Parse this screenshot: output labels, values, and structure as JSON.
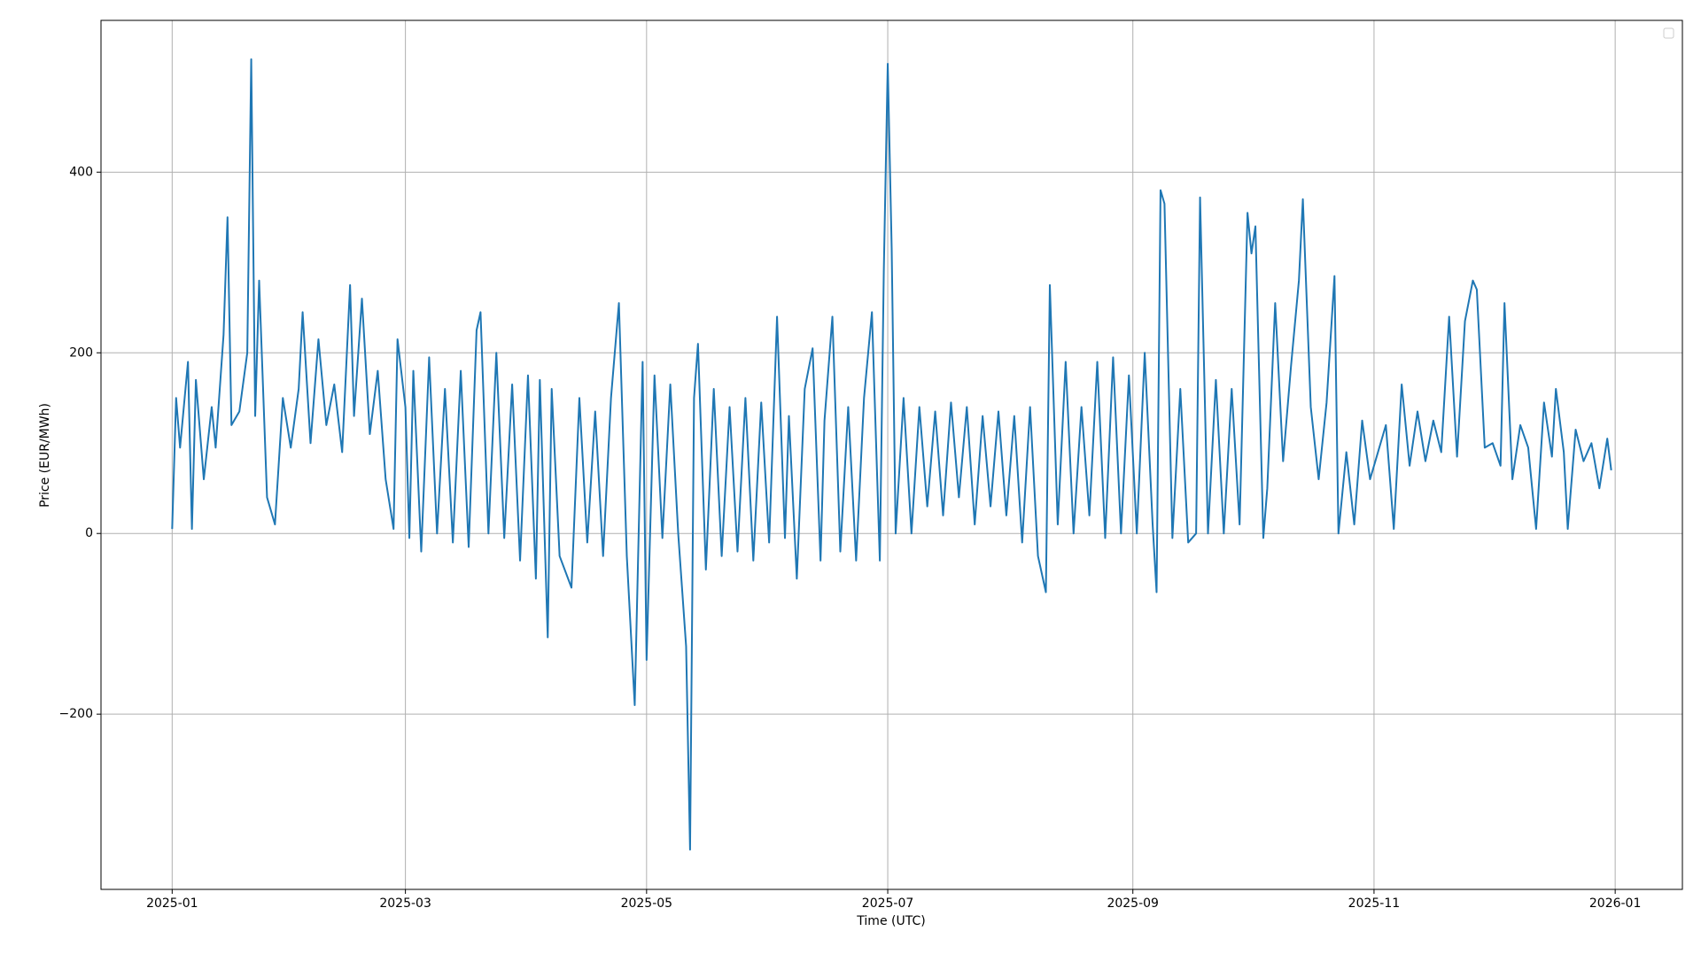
{
  "chart_data": {
    "type": "line",
    "xlabel": "Time (UTC)",
    "ylabel": "Price (EUR/MWh)",
    "x": [
      "2025-01-01",
      "2025-01-02",
      "2025-01-03",
      "2025-01-05",
      "2025-01-06",
      "2025-01-07",
      "2025-01-09",
      "2025-01-11",
      "2025-01-12",
      "2025-01-14",
      "2025-01-15",
      "2025-01-16",
      "2025-01-18",
      "2025-01-20",
      "2025-01-21",
      "2025-01-22",
      "2025-01-23",
      "2025-01-25",
      "2025-01-27",
      "2025-01-29",
      "2025-01-31",
      "2025-02-02",
      "2025-02-03",
      "2025-02-05",
      "2025-02-07",
      "2025-02-09",
      "2025-02-11",
      "2025-02-13",
      "2025-02-15",
      "2025-02-16",
      "2025-02-18",
      "2025-02-20",
      "2025-02-22",
      "2025-02-24",
      "2025-02-26",
      "2025-02-27",
      "2025-03-01",
      "2025-03-02",
      "2025-03-03",
      "2025-03-05",
      "2025-03-07",
      "2025-03-09",
      "2025-03-11",
      "2025-03-13",
      "2025-03-15",
      "2025-03-17",
      "2025-03-19",
      "2025-03-20",
      "2025-03-22",
      "2025-03-24",
      "2025-03-26",
      "2025-03-28",
      "2025-03-30",
      "2025-04-01",
      "2025-04-03",
      "2025-04-04",
      "2025-04-06",
      "2025-04-07",
      "2025-04-09",
      "2025-04-12",
      "2025-04-14",
      "2025-04-16",
      "2025-04-18",
      "2025-04-20",
      "2025-04-22",
      "2025-04-24",
      "2025-04-26",
      "2025-04-28",
      "2025-04-30",
      "2025-05-01",
      "2025-05-03",
      "2025-05-05",
      "2025-05-07",
      "2025-05-09",
      "2025-05-11",
      "2025-05-12",
      "2025-05-13",
      "2025-05-14",
      "2025-05-16",
      "2025-05-18",
      "2025-05-20",
      "2025-05-22",
      "2025-05-24",
      "2025-05-26",
      "2025-05-28",
      "2025-05-30",
      "2025-06-01",
      "2025-06-03",
      "2025-06-05",
      "2025-06-06",
      "2025-06-08",
      "2025-06-10",
      "2025-06-12",
      "2025-06-14",
      "2025-06-15",
      "2025-06-17",
      "2025-06-19",
      "2025-06-21",
      "2025-06-23",
      "2025-06-25",
      "2025-06-27",
      "2025-06-29",
      "2025-06-30",
      "2025-07-01",
      "2025-07-02",
      "2025-07-03",
      "2025-07-05",
      "2025-07-07",
      "2025-07-09",
      "2025-07-11",
      "2025-07-13",
      "2025-07-15",
      "2025-07-17",
      "2025-07-19",
      "2025-07-21",
      "2025-07-23",
      "2025-07-25",
      "2025-07-27",
      "2025-07-29",
      "2025-07-31",
      "2025-08-02",
      "2025-08-04",
      "2025-08-06",
      "2025-08-08",
      "2025-08-10",
      "2025-08-11",
      "2025-08-13",
      "2025-08-15",
      "2025-08-17",
      "2025-08-19",
      "2025-08-21",
      "2025-08-23",
      "2025-08-25",
      "2025-08-27",
      "2025-08-29",
      "2025-08-31",
      "2025-09-02",
      "2025-09-04",
      "2025-09-06",
      "2025-09-07",
      "2025-09-08",
      "2025-09-09",
      "2025-09-11",
      "2025-09-13",
      "2025-09-15",
      "2025-09-17",
      "2025-09-18",
      "2025-09-20",
      "2025-09-22",
      "2025-09-24",
      "2025-09-26",
      "2025-09-28",
      "2025-09-30",
      "2025-10-01",
      "2025-10-02",
      "2025-10-04",
      "2025-10-05",
      "2025-10-07",
      "2025-10-09",
      "2025-10-11",
      "2025-10-13",
      "2025-10-14",
      "2025-10-16",
      "2025-10-18",
      "2025-10-20",
      "2025-10-22",
      "2025-10-23",
      "2025-10-25",
      "2025-10-27",
      "2025-10-29",
      "2025-10-31",
      "2025-11-02",
      "2025-11-04",
      "2025-11-06",
      "2025-11-08",
      "2025-11-10",
      "2025-11-12",
      "2025-11-14",
      "2025-11-16",
      "2025-11-18",
      "2025-11-20",
      "2025-11-22",
      "2025-11-24",
      "2025-11-26",
      "2025-11-27",
      "2025-11-29",
      "2025-12-01",
      "2025-12-03",
      "2025-12-04",
      "2025-12-06",
      "2025-12-08",
      "2025-12-10",
      "2025-12-12",
      "2025-12-14",
      "2025-12-16",
      "2025-12-17",
      "2025-12-19",
      "2025-12-20",
      "2025-12-22",
      "2025-12-24",
      "2025-12-26",
      "2025-12-28",
      "2025-12-30",
      "2025-12-31"
    ],
    "values": [
      5,
      150,
      95,
      190,
      5,
      170,
      60,
      140,
      95,
      220,
      350,
      120,
      135,
      200,
      525,
      130,
      280,
      40,
      10,
      150,
      95,
      160,
      245,
      100,
      215,
      120,
      165,
      90,
      275,
      130,
      260,
      110,
      180,
      60,
      5,
      215,
      140,
      -5,
      180,
      -20,
      195,
      0,
      160,
      -10,
      180,
      -15,
      225,
      245,
      0,
      200,
      -5,
      165,
      -30,
      175,
      -50,
      170,
      -115,
      160,
      -25,
      -60,
      150,
      -10,
      135,
      -25,
      150,
      255,
      -25,
      -190,
      190,
      -140,
      175,
      -5,
      165,
      0,
      -125,
      -350,
      150,
      210,
      -40,
      160,
      -25,
      140,
      -20,
      150,
      -30,
      145,
      -10,
      240,
      -5,
      130,
      -50,
      160,
      205,
      -30,
      125,
      240,
      -20,
      140,
      -30,
      150,
      245,
      -30,
      290,
      520,
      315,
      0,
      150,
      0,
      140,
      30,
      135,
      20,
      145,
      40,
      140,
      10,
      130,
      30,
      135,
      20,
      130,
      -10,
      140,
      -25,
      -65,
      275,
      10,
      190,
      0,
      140,
      20,
      190,
      -5,
      195,
      0,
      175,
      0,
      200,
      10,
      -65,
      380,
      365,
      -5,
      160,
      -10,
      0,
      372,
      0,
      170,
      0,
      160,
      10,
      355,
      310,
      340,
      -5,
      50,
      255,
      80,
      185,
      280,
      370,
      140,
      60,
      145,
      285,
      0,
      90,
      10,
      125,
      60,
      90,
      120,
      5,
      165,
      75,
      135,
      80,
      125,
      90,
      240,
      85,
      235,
      280,
      270,
      95,
      100,
      75,
      255,
      60,
      120,
      95,
      5,
      145,
      85,
      160,
      90,
      5,
      115,
      80,
      100,
      50,
      105,
      70
    ],
    "color": "#1f77b4",
    "xlim": [
      "2024-12-14",
      "2026-01-18"
    ],
    "xticks": [
      "2025-01",
      "2025-03",
      "2025-05",
      "2025-07",
      "2025-09",
      "2025-11",
      "2026-01"
    ],
    "ylim": [
      -394,
      568
    ],
    "yticks": [
      {
        "value": -200,
        "label": "−200"
      },
      0,
      200,
      400
    ],
    "grid": true
  }
}
